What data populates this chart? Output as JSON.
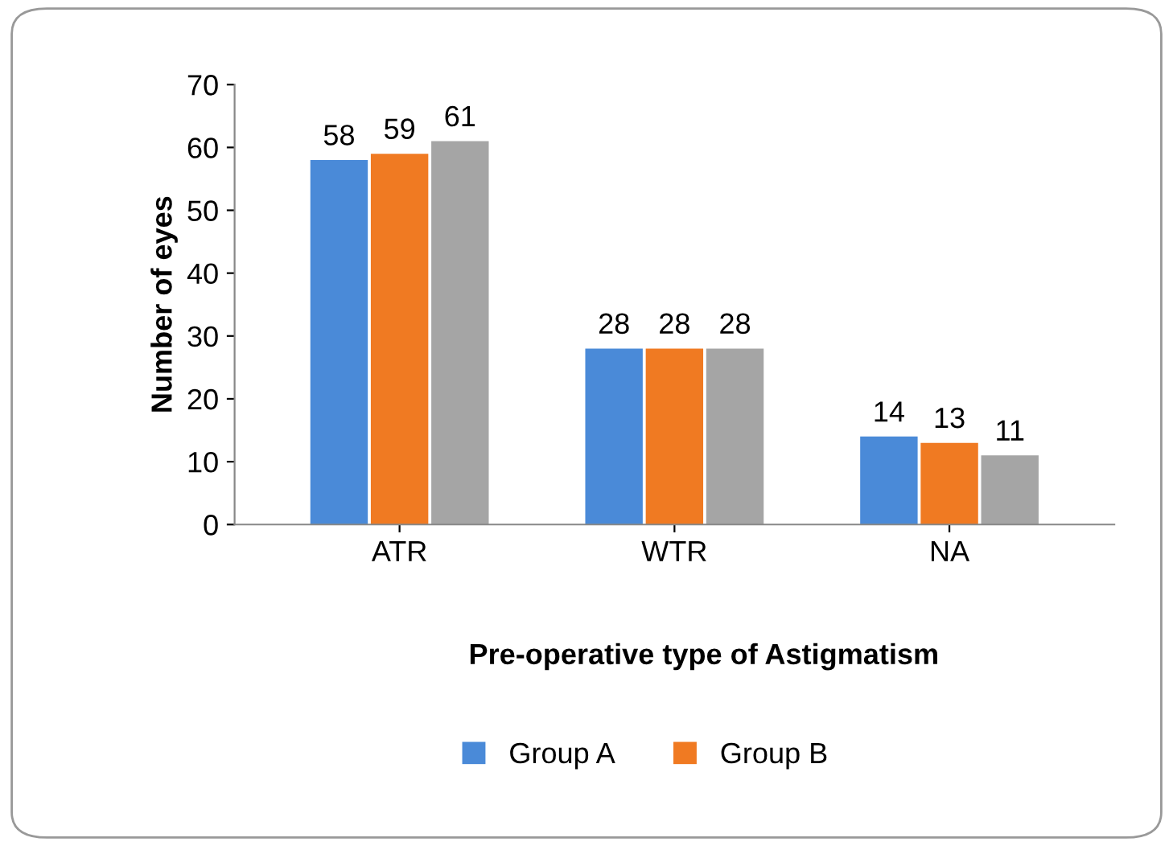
{
  "chart_data": {
    "type": "bar",
    "xlabel": "Pre-operative type of Astigmatism",
    "ylabel": "Number of eyes",
    "categories": [
      "ATR",
      "WTR",
      "NA"
    ],
    "series": [
      {
        "name": "Group A",
        "color": "#4a8ad8",
        "values": [
          58,
          28,
          14
        ]
      },
      {
        "name": "Group B",
        "color": "#f07a22",
        "values": [
          59,
          28,
          13
        ]
      },
      {
        "color": "#a5a5a5",
        "values": [
          61,
          28,
          11
        ]
      }
    ],
    "ylim": [
      0,
      70
    ],
    "yticks": [
      0,
      10,
      20,
      30,
      40,
      50,
      60,
      70
    ],
    "grid": false,
    "data_labels": true,
    "legend": "bottom"
  }
}
